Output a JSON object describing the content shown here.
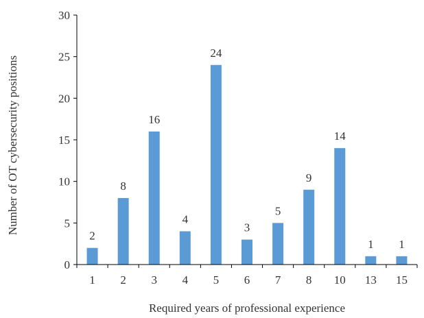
{
  "chart_data": {
    "type": "bar",
    "categories": [
      "1",
      "2",
      "3",
      "4",
      "5",
      "6",
      "7",
      "8",
      "10",
      "13",
      "15"
    ],
    "values": [
      2,
      8,
      16,
      4,
      24,
      3,
      5,
      9,
      14,
      1,
      1
    ],
    "title": "",
    "xlabel": "Required years of professional experience",
    "ylabel": "Number of OT cybersecurity positions",
    "ylim": [
      0,
      30
    ],
    "yticks": [
      0,
      5,
      10,
      15,
      20,
      25,
      30
    ],
    "grid": false,
    "legend": "none",
    "data_labels": true,
    "bar_color": "#5B9BD5"
  }
}
